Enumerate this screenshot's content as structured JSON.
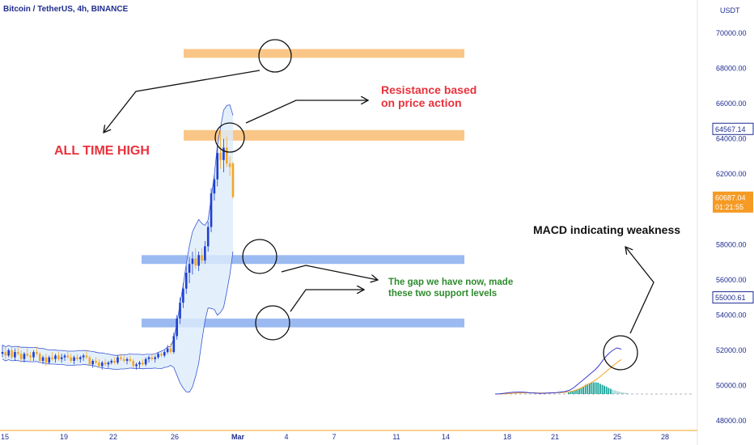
{
  "header": {
    "symbol": "Bitcoin / TetherUS, 4h, BINANCE",
    "currency": "USDT"
  },
  "colors": {
    "up": "#1e3fcf",
    "down": "#f5a623",
    "band_fill": "#dcecfb",
    "band_line": "#3a56d4",
    "resistance_zone": "#f9c07a",
    "support_zone": "#8fb3f0",
    "red_text": "#e8323c",
    "green_text": "#2e8b2e",
    "axis_text": "#1e2d8f",
    "current_price_tag": "#f59a23",
    "macd_line": "#3a3ad4",
    "signal_line": "#f5a623",
    "hist_up": "#1aa39a"
  },
  "annotations": {
    "all_time_high": "ALL TIME HIGH",
    "resistance_line1": "Resistance based",
    "resistance_line2": "on price action",
    "support_line1": "The gap we have now, made",
    "support_line2": "these two support levels",
    "macd": "MACD indicating weakness"
  },
  "price_tags": {
    "high": "64567.14",
    "current": "60687.04",
    "countdown": "01:21:55",
    "support": "55000.61"
  },
  "chart_data": {
    "type": "candlestick",
    "ylim": [
      47500,
      71000
    ],
    "yticks": [
      48000,
      50000,
      52000,
      54000,
      56000,
      58000,
      60000,
      62000,
      64000,
      66000,
      68000,
      70000
    ],
    "ytick_labels": [
      "48000.00",
      "50000.00",
      "52000.00",
      "54000.00",
      "56000.00",
      "58000.00",
      "60000.00",
      "62000.00",
      "64000.00",
      "66000.00",
      "68000.00",
      "70000.00"
    ],
    "xticks": [
      "15",
      "19",
      "22",
      "26",
      "Mar",
      "4",
      "7",
      "11",
      "14",
      "18",
      "21",
      "25",
      "28"
    ],
    "grid": false,
    "zones": [
      {
        "role": "resistance",
        "low": 68600,
        "high": 69100
      },
      {
        "role": "resistance",
        "low": 63900,
        "high": 64500
      },
      {
        "role": "support",
        "low": 56900,
        "high": 57400
      },
      {
        "role": "support",
        "low": 53300,
        "high": 53800
      }
    ],
    "candles": [
      [
        51800,
        52300,
        51600,
        51900
      ],
      [
        51900,
        52200,
        51500,
        51700
      ],
      [
        51700,
        52100,
        51600,
        52000
      ],
      [
        52000,
        52200,
        51500,
        51600
      ],
      [
        51600,
        52100,
        51400,
        51900
      ],
      [
        51900,
        52200,
        51700,
        51800
      ],
      [
        51800,
        52000,
        51300,
        51500
      ],
      [
        51500,
        51900,
        51300,
        51800
      ],
      [
        51800,
        52100,
        51600,
        51700
      ],
      [
        51700,
        51900,
        51400,
        51600
      ],
      [
        51600,
        52000,
        51400,
        51900
      ],
      [
        51900,
        52200,
        51700,
        51800
      ],
      [
        51800,
        51900,
        51300,
        51400
      ],
      [
        51400,
        51700,
        51200,
        51600
      ],
      [
        51600,
        51800,
        51100,
        51300
      ],
      [
        51300,
        51700,
        51200,
        51600
      ],
      [
        51600,
        51900,
        51400,
        51500
      ],
      [
        51500,
        51800,
        51300,
        51700
      ],
      [
        51700,
        51900,
        51400,
        51500
      ],
      [
        51500,
        51800,
        51300,
        51600
      ],
      [
        51600,
        51800,
        51400,
        51700
      ],
      [
        51700,
        51900,
        51500,
        51600
      ],
      [
        51600,
        51800,
        51300,
        51400
      ],
      [
        51400,
        51700,
        51200,
        51600
      ],
      [
        51600,
        51800,
        51400,
        51500
      ],
      [
        51500,
        51700,
        51300,
        51600
      ],
      [
        51600,
        51800,
        51400,
        51700
      ],
      [
        51700,
        52000,
        51500,
        51600
      ],
      [
        51600,
        51700,
        51100,
        51200
      ],
      [
        51200,
        51500,
        51000,
        51400
      ],
      [
        51400,
        51600,
        51200,
        51300
      ],
      [
        51300,
        51500,
        51000,
        51100
      ],
      [
        51100,
        51400,
        50900,
        51300
      ],
      [
        51300,
        51500,
        51100,
        51200
      ],
      [
        51200,
        51400,
        51000,
        51300
      ],
      [
        51300,
        51500,
        51200,
        51400
      ],
      [
        51400,
        51600,
        51200,
        51300
      ],
      [
        51300,
        51700,
        51200,
        51600
      ],
      [
        51600,
        51800,
        51400,
        51500
      ],
      [
        51500,
        51700,
        51300,
        51400
      ],
      [
        51400,
        51600,
        51200,
        51500
      ],
      [
        51500,
        51700,
        51300,
        51400
      ],
      [
        51400,
        51500,
        51000,
        51100
      ],
      [
        51100,
        51300,
        50900,
        51200
      ],
      [
        51200,
        51400,
        51000,
        51300
      ],
      [
        51300,
        51500,
        51100,
        51200
      ],
      [
        51200,
        51600,
        51100,
        51500
      ],
      [
        51500,
        51700,
        51300,
        51600
      ],
      [
        51600,
        51800,
        51400,
        51500
      ],
      [
        51500,
        51700,
        51300,
        51600
      ],
      [
        51600,
        51900,
        51500,
        51800
      ],
      [
        51800,
        52000,
        51600,
        51700
      ],
      [
        51700,
        52000,
        51600,
        51900
      ],
      [
        51900,
        52300,
        51800,
        52100
      ],
      [
        52100,
        52400,
        51800,
        51900
      ],
      [
        51900,
        53000,
        51800,
        52800
      ],
      [
        52800,
        54000,
        52600,
        53800
      ],
      [
        53800,
        55000,
        53500,
        54700
      ],
      [
        54700,
        55800,
        54400,
        55500
      ],
      [
        55500,
        56800,
        55200,
        56400
      ],
      [
        56400,
        57300,
        55800,
        56900
      ],
      [
        56900,
        57600,
        56300,
        57200
      ],
      [
        57200,
        57800,
        56600,
        56800
      ],
      [
        56800,
        57600,
        56500,
        57400
      ],
      [
        57400,
        57800,
        56900,
        57100
      ],
      [
        57100,
        58200,
        56900,
        57900
      ],
      [
        57900,
        59300,
        57600,
        59000
      ],
      [
        59000,
        61200,
        58700,
        60900
      ],
      [
        60900,
        62000,
        60500,
        61700
      ],
      [
        61700,
        63600,
        61300,
        63200
      ],
      [
        63200,
        64500,
        62300,
        62800
      ],
      [
        62800,
        64000,
        62100,
        63500
      ],
      [
        63500,
        64100,
        62400,
        62600
      ],
      [
        62600,
        63000,
        61900,
        62400
      ],
      [
        62600,
        62700,
        60600,
        60700
      ]
    ],
    "macd_hist": [
      0.05,
      0.08,
      0.1,
      0.12,
      0.15,
      0.17,
      0.2,
      0.25,
      0.3,
      0.33,
      0.35,
      0.37,
      0.38,
      0.38,
      0.37,
      0.33,
      0.3,
      0.27,
      0.24,
      0.2,
      0.17,
      0.14,
      0.12,
      0.1,
      0.08,
      0.06,
      0.05,
      0.04,
      0.03
    ],
    "macd_line": [
      0.0,
      0.01,
      0.03,
      0.05,
      0.07,
      0.08,
      0.08,
      0.07,
      0.05,
      0.04,
      0.03,
      0.03,
      0.04,
      0.05,
      0.06,
      0.08,
      0.1,
      0.15,
      0.25,
      0.4,
      0.55,
      0.7,
      0.85,
      1.0,
      1.2,
      1.45,
      1.65,
      1.8,
      1.9,
      1.85
    ],
    "signal_line": [
      0.0,
      0.0,
      0.01,
      0.02,
      0.03,
      0.04,
      0.05,
      0.05,
      0.05,
      0.05,
      0.04,
      0.04,
      0.04,
      0.04,
      0.05,
      0.06,
      0.07,
      0.09,
      0.13,
      0.19,
      0.27,
      0.36,
      0.46,
      0.57,
      0.7,
      0.85,
      1.0,
      1.15,
      1.3,
      1.42
    ]
  }
}
